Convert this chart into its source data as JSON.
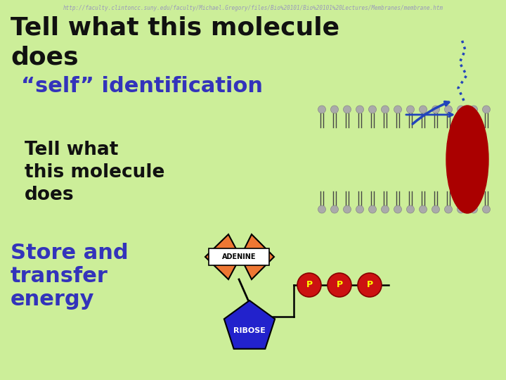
{
  "background_color": "#ccee99",
  "url_text": "http://faculty.clintoncc.suny.edu/faculty/Michael.Gregory/files/Bio%20101/Bio%20101%20Lectures/Membranes/membrane.htm",
  "url_color": "#9999bb",
  "url_fontsize": 5.5,
  "title_line1": "Tell what this molecule",
  "title_line2": "does",
  "title_color": "#111111",
  "title_fontsize": 26,
  "self_id_text": "“self” identification",
  "self_id_color": "#3333bb",
  "self_id_fontsize": 22,
  "tell_line1": "Tell what",
  "tell_line2": "this molecule",
  "tell_line3": "does",
  "tell_color": "#111111",
  "tell_fontsize": 19,
  "store_line1": "Store and",
  "store_line2": "transfer",
  "store_line3": "energy",
  "store_color": "#3333bb",
  "store_fontsize": 22,
  "protein_color": "#aa0000",
  "glycoprotein_color": "#2244bb",
  "arrow_color": "#2244bb",
  "adenine_color": "#ee7733",
  "ribose_color": "#2222cc",
  "ribose_label_color": "#ffffff",
  "phosphate_color": "#cc1111",
  "phosphate_label_color": "#ffff00",
  "head_color": "#aaaaaa",
  "tail_color": "#444444"
}
